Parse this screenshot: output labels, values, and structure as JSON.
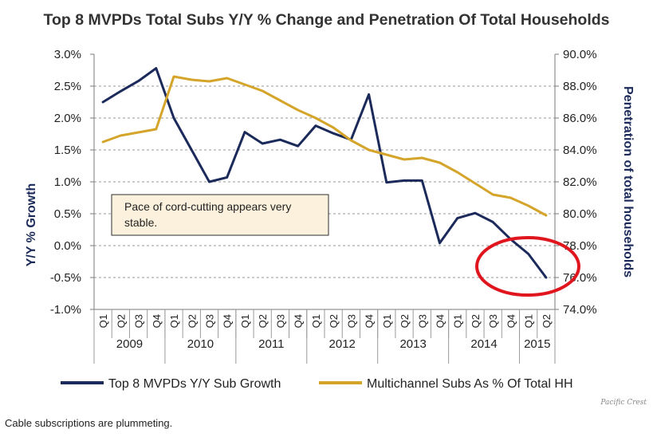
{
  "chart_data": {
    "type": "line",
    "title": "Top 8 MVPDs Total Subs Y/Y % Change and Penetration Of Total Households",
    "ylabel_left": "Y/Y % Growth",
    "ylabel_right": "Penetration of total households",
    "ylim_left": [
      -1.0,
      3.0
    ],
    "ylim_right": [
      74.0,
      90.0
    ],
    "yticks_left": [
      "3.0%",
      "2.5%",
      "2.0%",
      "1.5%",
      "1.0%",
      "0.5%",
      "0.0%",
      "-0.5%",
      "-1.0%"
    ],
    "yticks_right": [
      "90.0%",
      "88.0%",
      "86.0%",
      "84.0%",
      "82.0%",
      "80.0%",
      "78.0%",
      "76.0%",
      "74.0%"
    ],
    "grid": true,
    "legend_position": "bottom",
    "quarters": [
      "Q1",
      "Q2",
      "Q3",
      "Q4",
      "Q1",
      "Q2",
      "Q3",
      "Q4",
      "Q1",
      "Q2",
      "Q3",
      "Q4",
      "Q1",
      "Q2",
      "Q3",
      "Q4",
      "Q1",
      "Q2",
      "Q3",
      "Q4",
      "Q1",
      "Q2",
      "Q3",
      "Q4",
      "Q1",
      "Q2"
    ],
    "years": [
      {
        "label": "2009",
        "count": 4
      },
      {
        "label": "2010",
        "count": 4
      },
      {
        "label": "2011",
        "count": 4
      },
      {
        "label": "2012",
        "count": 4
      },
      {
        "label": "2013",
        "count": 4
      },
      {
        "label": "2014",
        "count": 4
      },
      {
        "label": "2015",
        "count": 2
      }
    ],
    "series": [
      {
        "name": "Top 8 MVPDs Y/Y Sub Growth",
        "axis": "left",
        "color": "#1b2a5a",
        "values": [
          2.25,
          2.42,
          2.58,
          2.78,
          2.0,
          1.5,
          1.0,
          1.07,
          1.78,
          1.6,
          1.66,
          1.56,
          1.88,
          1.76,
          1.66,
          2.37,
          0.99,
          1.02,
          1.02,
          0.04,
          0.43,
          0.51,
          0.37,
          0.1,
          -0.13,
          -0.5
        ]
      },
      {
        "name": "Multichannel Subs As % Of Total HH",
        "axis": "right",
        "color": "#d4a52a",
        "values": [
          84.5,
          84.9,
          85.1,
          85.3,
          88.6,
          88.4,
          88.3,
          88.5,
          88.1,
          87.7,
          87.1,
          86.5,
          86.0,
          85.4,
          84.6,
          84.0,
          83.7,
          83.4,
          83.5,
          83.2,
          82.6,
          81.9,
          81.2,
          81.0,
          80.5,
          79.9
        ]
      }
    ],
    "annotation": {
      "text_line1": "Pace of cord-cutting appears very",
      "text_line2": "stable."
    },
    "highlight": {
      "shape": "ellipse",
      "color": "#e0161e",
      "around_quarters": [
        23,
        25
      ],
      "around_left_values": [
        -0.5,
        0.2
      ]
    }
  },
  "source_note": "Pacific Crest",
  "caption": "Cable subscriptions are plummeting."
}
